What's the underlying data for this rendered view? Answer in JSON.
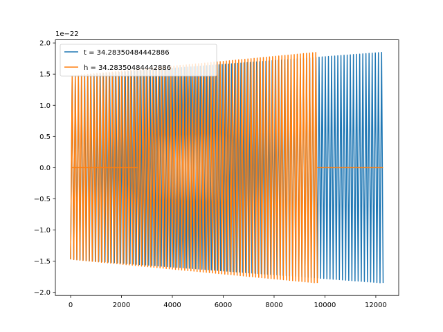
{
  "chart_data": {
    "type": "line",
    "title": "",
    "xlabel": "",
    "ylabel": "",
    "xlim": [
      -600,
      12900
    ],
    "ylim": [
      -2.05,
      2.05
    ],
    "y_offset_label": "1e−22",
    "grid": false,
    "legend_placement": "top-left",
    "x_ticks": [
      0,
      2000,
      4000,
      6000,
      8000,
      10000,
      12000
    ],
    "x_tick_labels": [
      "0",
      "2000",
      "4000",
      "6000",
      "8000",
      "10000",
      "12000"
    ],
    "y_ticks": [
      -2.0,
      -1.5,
      -1.0,
      -0.5,
      0.0,
      0.5,
      1.0,
      1.5,
      2.0
    ],
    "y_tick_labels": [
      "−2.0",
      "−1.5",
      "−1.0",
      "−0.5",
      "0.0",
      "0.5",
      "1.0",
      "1.5",
      "2.0"
    ],
    "series": [
      {
        "name": "t = 34.28350484442886",
        "color": "#1f77b4",
        "x_range": [
          0,
          12288
        ],
        "oscillations": 100,
        "amplitude_start": 1.47,
        "amplitude_end": 1.85,
        "zero_segments": []
      },
      {
        "name": "h = 34.28350484442886",
        "color": "#ff7f0e",
        "x_range": [
          0,
          9700
        ],
        "oscillations": 80,
        "amplitude_start": 1.47,
        "amplitude_end": 1.85,
        "zero_segments": [
          [
            50,
            2650
          ],
          [
            9700,
            12288
          ]
        ]
      }
    ]
  }
}
